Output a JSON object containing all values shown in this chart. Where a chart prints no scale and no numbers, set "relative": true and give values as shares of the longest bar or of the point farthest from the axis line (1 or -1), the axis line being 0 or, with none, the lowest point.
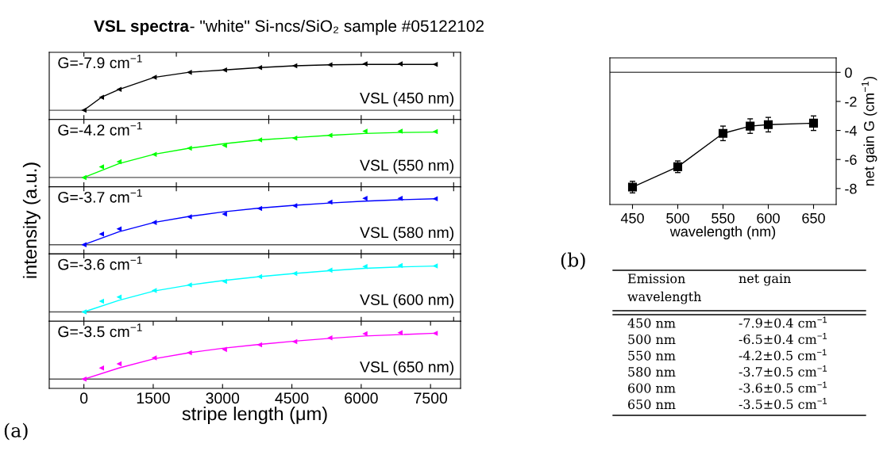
{
  "chart_data": [
    {
      "type": "line",
      "title": "VSL spectra",
      "subtitle": "- \"white\" Si-ncs/SiO₂ sample #05122102",
      "relative": true,
      "xlim": [
        -750,
        8150
      ],
      "tick_labels": false,
      "annotations": [
        "G=-7.9 cm$^{−1}$",
        "VSL (450 nm)"
      ],
      "series": [
        {
          "type": "scatter",
          "color": "#000000",
          "marker": "triangle",
          "x": [
            0,
            380,
            760,
            1520,
            2280,
            3040,
            3800,
            4560,
            5320,
            6080,
            6840,
            7600
          ],
          "values": [
            0,
            0.28,
            0.45,
            0.71,
            0.82,
            0.87,
            0.92,
            0.96,
            0.98,
            1.0,
            1.0,
            0.99
          ]
        },
        {
          "type": "line",
          "color": "#000000",
          "x": [
            0,
            380,
            760,
            1520,
            2280,
            3040,
            3800,
            4560,
            5320,
            6080,
            6840,
            7600
          ],
          "values": [
            0,
            0.28,
            0.45,
            0.71,
            0.82,
            0.87,
            0.92,
            0.96,
            0.98,
            0.99,
            0.99,
            0.99
          ]
        }
      ]
    },
    {
      "type": "line",
      "relative": true,
      "xlim": [
        -750,
        8150
      ],
      "tick_labels": false,
      "annotations": [
        "G=-4.2 cm$^{−1}$",
        "VSL (550 nm)"
      ],
      "series": [
        {
          "type": "scatter",
          "color": "#00ff00",
          "marker": "triangle",
          "x": [
            0,
            380,
            760,
            1520,
            2280,
            3040,
            3800,
            4560,
            5320,
            6080,
            6840,
            7600
          ],
          "values": [
            0,
            0.23,
            0.34,
            0.5,
            0.63,
            0.69,
            0.81,
            0.85,
            0.91,
            1.0,
            1.0,
            0.99
          ]
        },
        {
          "type": "line",
          "color": "#00ff00",
          "x": [
            0,
            760,
            1520,
            2280,
            3040,
            3800,
            4560,
            5320,
            6080,
            6840,
            7600
          ],
          "values": [
            0,
            0.3,
            0.5,
            0.63,
            0.73,
            0.81,
            0.86,
            0.91,
            0.95,
            0.97,
            0.98
          ]
        }
      ]
    },
    {
      "type": "line",
      "relative": true,
      "xlim": [
        -750,
        8150
      ],
      "tick_labels": false,
      "ylabel": "intensity (a.u.)",
      "annotations": [
        "G=-3.7 cm$^{−1}$",
        "VSL (580 nm)"
      ],
      "series": [
        {
          "type": "scatter",
          "color": "#0000ff",
          "marker": "triangle",
          "x": [
            0,
            380,
            760,
            1520,
            2280,
            3040,
            3800,
            4560,
            5320,
            6080,
            6840,
            7600
          ],
          "values": [
            0,
            0.23,
            0.34,
            0.48,
            0.6,
            0.66,
            0.78,
            0.84,
            0.92,
            1.0,
            1.0,
            0.99
          ]
        },
        {
          "type": "line",
          "color": "#0000ff",
          "x": [
            0,
            760,
            1520,
            2280,
            3040,
            3800,
            4560,
            5320,
            6080,
            6840,
            7600
          ],
          "values": [
            0,
            0.28,
            0.48,
            0.61,
            0.71,
            0.79,
            0.85,
            0.9,
            0.94,
            0.97,
            0.99
          ]
        }
      ]
    },
    {
      "type": "line",
      "relative": true,
      "xlim": [
        -750,
        8150
      ],
      "tick_labels": false,
      "annotations": [
        "G=-3.6 cm$^{−1}$",
        "VSL (600 nm)"
      ],
      "series": [
        {
          "type": "scatter",
          "color": "#00ffff",
          "marker": "triangle",
          "x": [
            0,
            380,
            760,
            1520,
            2280,
            3040,
            3800,
            4560,
            5320,
            6080,
            6840,
            7600
          ],
          "values": [
            0,
            0.23,
            0.32,
            0.46,
            0.58,
            0.66,
            0.76,
            0.83,
            0.9,
            0.98,
            1.0,
            0.99
          ]
        },
        {
          "type": "line",
          "color": "#00ffff",
          "x": [
            0,
            760,
            1520,
            2280,
            3040,
            3800,
            4560,
            5320,
            6080,
            6840,
            7600
          ],
          "values": [
            0,
            0.25,
            0.45,
            0.58,
            0.68,
            0.76,
            0.83,
            0.89,
            0.94,
            0.97,
            0.99
          ]
        }
      ]
    },
    {
      "type": "line",
      "relative": true,
      "xlim": [
        -750,
        8150
      ],
      "xticks": [
        0,
        1500,
        3000,
        4500,
        6000,
        7500
      ],
      "tick_labels": "x",
      "xlabel": "stripe length (μm)",
      "annotations": [
        "G=-3.5 cm$^{−1}$",
        "VSL (650 nm)",
        "(a)"
      ],
      "series": [
        {
          "type": "scatter",
          "color": "#ff00ff",
          "marker": "triangle",
          "x": [
            0,
            380,
            760,
            1520,
            2280,
            3040,
            3800,
            4560,
            5320,
            6080,
            6840,
            7600
          ],
          "values": [
            0,
            0.24,
            0.33,
            0.46,
            0.57,
            0.64,
            0.74,
            0.81,
            0.89,
            0.98,
            1.0,
            0.99
          ]
        },
        {
          "type": "line",
          "color": "#ff00ff",
          "x": [
            0,
            760,
            1520,
            2280,
            3040,
            3800,
            4560,
            5320,
            6080,
            6840,
            7600
          ],
          "values": [
            0,
            0.24,
            0.44,
            0.57,
            0.67,
            0.75,
            0.82,
            0.88,
            0.93,
            0.96,
            0.99
          ]
        }
      ]
    },
    {
      "type": "line",
      "x": [
        450,
        500,
        550,
        580,
        600,
        650
      ],
      "xlim": [
        425,
        675
      ],
      "xticks": [
        450,
        500,
        550,
        600,
        650
      ],
      "ylim": [
        -9.1,
        1
      ],
      "yticks": [
        0,
        -2,
        -4,
        -6,
        -8
      ],
      "xlabel": "wavelength (nm)",
      "ylabel": "net gain G (cm$^{−1}$)",
      "marker": "square",
      "ref_lines": [
        {
          "axis": "y",
          "value": 0,
          "color": "#555555"
        }
      ],
      "series": [
        {
          "color": "#000000",
          "values": [
            -7.9,
            -6.5,
            -4.2,
            -3.7,
            -3.6,
            -3.5
          ],
          "errors": [
            0.4,
            0.4,
            0.5,
            0.5,
            0.5,
            0.5
          ]
        }
      ],
      "annotations": [
        "(b)",
        "Emission\nwavelength",
        "net gain",
        "450 nm",
        "-7.9±0.4 cm$^{−1}$",
        "500 nm",
        "-6.5±0.4 cm$^{−1}$",
        "550 nm",
        "-4.2±0.5 cm$^{−1}$",
        "580 nm",
        "-3.7±0.5 cm$^{−1}$",
        "600 nm",
        "-3.6±0.5 cm$^{−1}$",
        "650 nm",
        "-3.5±0.5 cm$^{−1}$"
      ]
    }
  ]
}
